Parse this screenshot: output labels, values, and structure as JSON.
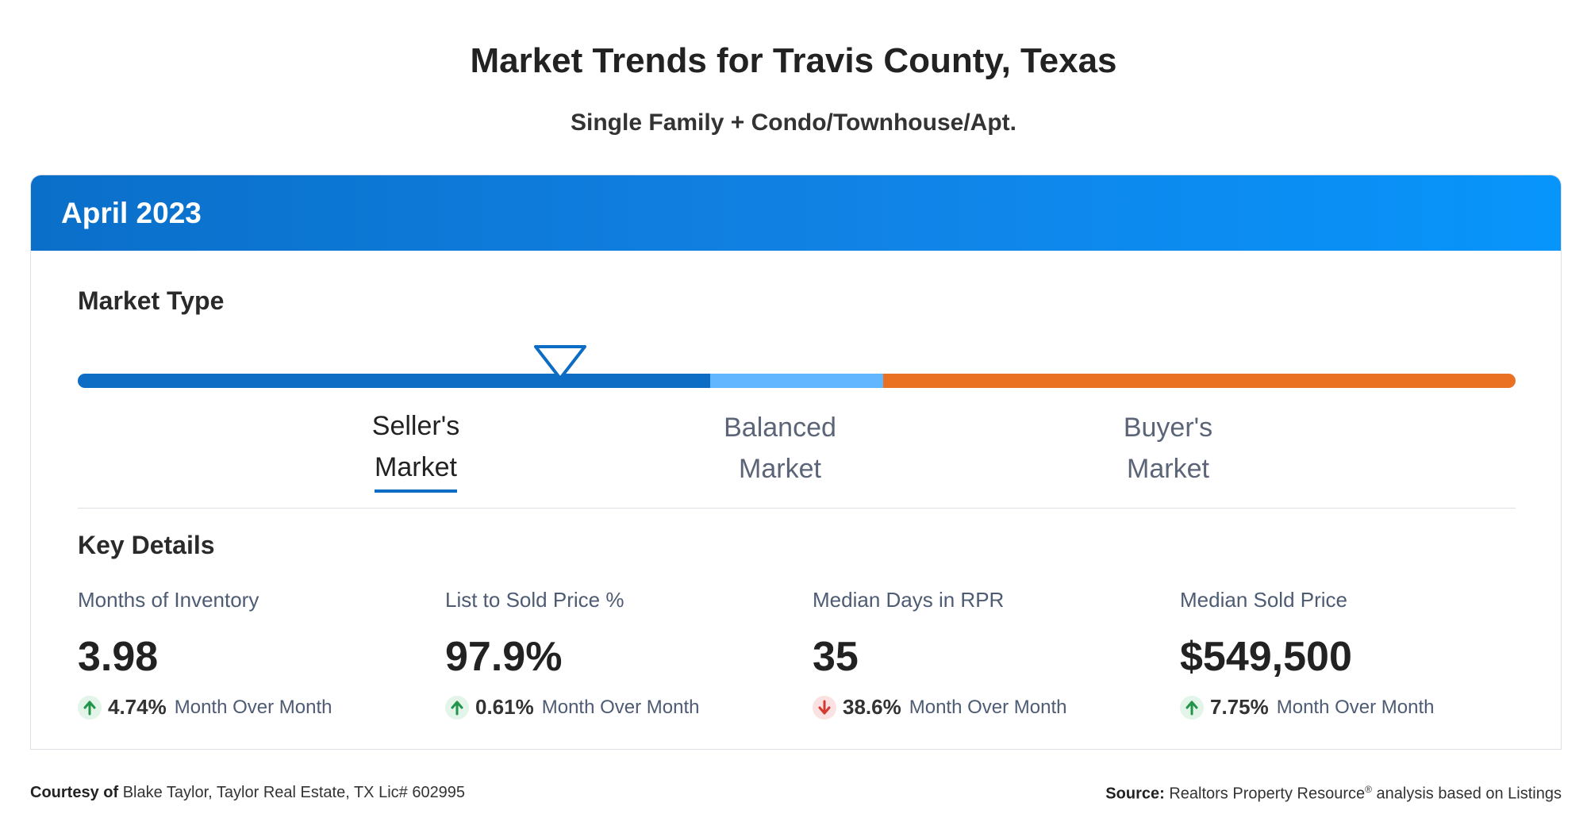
{
  "header": {
    "title": "Market Trends for Travis County, Texas",
    "subtitle": "Single Family + Condo/Townhouse/Apt."
  },
  "card": {
    "period": "April 2023",
    "market_type": {
      "heading": "Market Type",
      "indicator_position": 0.334,
      "labels": [
        {
          "line1": "Seller's",
          "line2": "Market",
          "active": true
        },
        {
          "line1": "Balanced",
          "line2": "Market",
          "active": false
        },
        {
          "line1": "Buyer's",
          "line2": "Market",
          "active": false
        }
      ],
      "colors": {
        "sellers": "#0d6dc4",
        "balanced": "#62b5ff",
        "buyers": "#ea7122"
      }
    },
    "key_details": {
      "heading": "Key Details",
      "metrics": [
        {
          "label": "Months of Inventory",
          "value": "3.98",
          "direction": "up",
          "change": "4.74%",
          "change_label": "Month Over Month"
        },
        {
          "label": "List to Sold Price %",
          "value": "97.9%",
          "direction": "up",
          "change": "0.61%",
          "change_label": "Month Over Month"
        },
        {
          "label": "Median Days in RPR",
          "value": "35",
          "direction": "down",
          "change": "38.6%",
          "change_label": "Month Over Month"
        },
        {
          "label": "Median Sold Price",
          "value": "$549,500",
          "direction": "up",
          "change": "7.75%",
          "change_label": "Month Over Month"
        }
      ]
    }
  },
  "footer": {
    "courtesy_label": "Courtesy of",
    "courtesy_text": "Blake Taylor, Taylor Real Estate, TX Lic# 602995",
    "source_label": "Source:",
    "source_name": "Realtors Property Resource",
    "source_mark": "®",
    "source_text": "analysis based on Listings"
  }
}
